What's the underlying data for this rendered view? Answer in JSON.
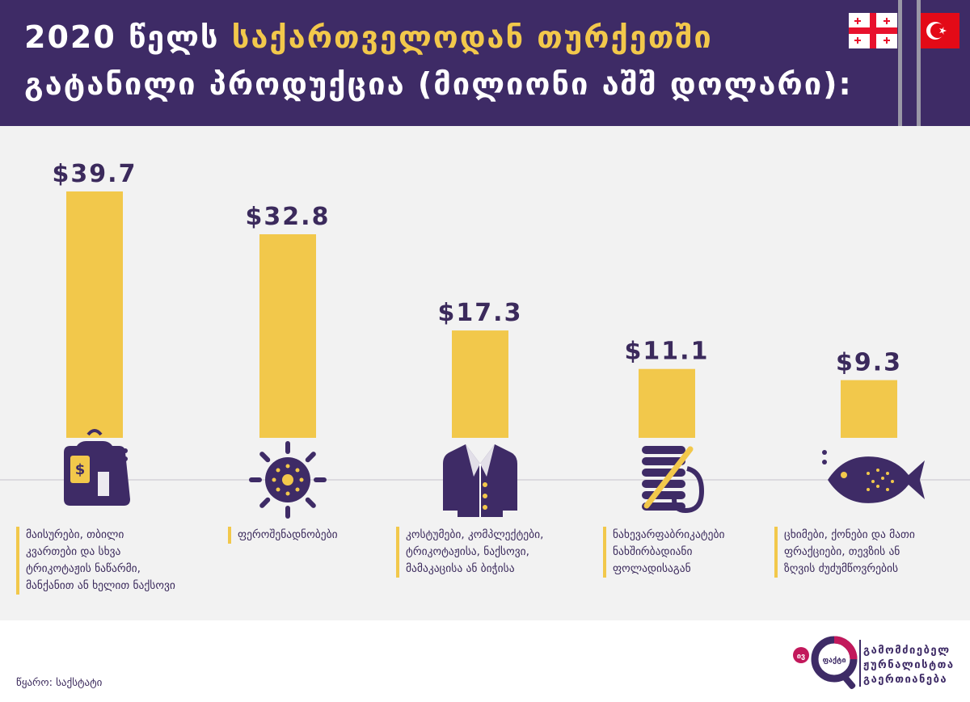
{
  "header": {
    "title_part1": "2020 წელს",
    "title_part2": "საქართველოდან თურქეთში",
    "title_line2": "გატანილი პროდუქცია (მილიონი აშშ დოლარი):"
  },
  "colors": {
    "header_bg": "#3e2b66",
    "accent_yellow": "#f2c84b",
    "panel_bg": "#f2f2f2",
    "text_purple": "#3b2a5c",
    "logo_magenta": "#c2185b"
  },
  "chart_data": {
    "type": "bar",
    "categories": [
      "მაისურები, თბილი კვართები და სხვა ტრიკოტაჟის ნაწარმი, მანქანით ან ხელით ნაქსოვი",
      "ფეროშენადნობები",
      "კოსტუმები, კომპლექტები, ტრიკოტაჟისა, ნაქსოვი, მამაკაცისა ან ბიჭისა",
      "ნახევარფაბრიკატები ნახშირბადიანი ფოლადისაგან",
      "ცხიმები, ქონები და მათი ფრაქციები, თევზის ან ზღვის ძუძუმწოვრების"
    ],
    "values": [
      39.7,
      32.8,
      17.3,
      11.1,
      9.3
    ],
    "value_labels": [
      "$39.7",
      "$32.8",
      "$17.3",
      "$11.1",
      "$9.3"
    ],
    "category_lines": [
      [
        "მაისურები, თბილი",
        "კვართები და სხვა",
        "ტრიკოტაჟის ნაწარმი,",
        "მანქანით ან ხელით ნაქსოვი"
      ],
      [
        "ფეროშენადნობები"
      ],
      [
        "კოსტუმები, კომპლექტები,",
        "ტრიკოტაჟისა, ნაქსოვი,",
        "მამაკაცისა ან ბიჭისა"
      ],
      [
        "ნახევარფაბრიკატები",
        "ნახშირბადიანი",
        "ფოლადისაგან"
      ],
      [
        "ცხიმები, ქონები და მათი",
        "ფრაქციები, თევზის ან",
        "ზღვის ძუძუმწოვრების"
      ]
    ],
    "icons": [
      "shirt-price-tag-icon",
      "ferroalloy-gear-icon",
      "coat-icon",
      "steel-coil-icon",
      "fish-icon"
    ],
    "ylim": [
      0,
      40
    ],
    "grid": false
  },
  "footer": {
    "source": "წყარო:  საქსტატი",
    "logo_badge": "ფაქტი",
    "logo_small": "ივ",
    "logo_lines": [
      "გამომძიებელ",
      "ჟურნალისტთა",
      "გაერთიანება"
    ]
  }
}
